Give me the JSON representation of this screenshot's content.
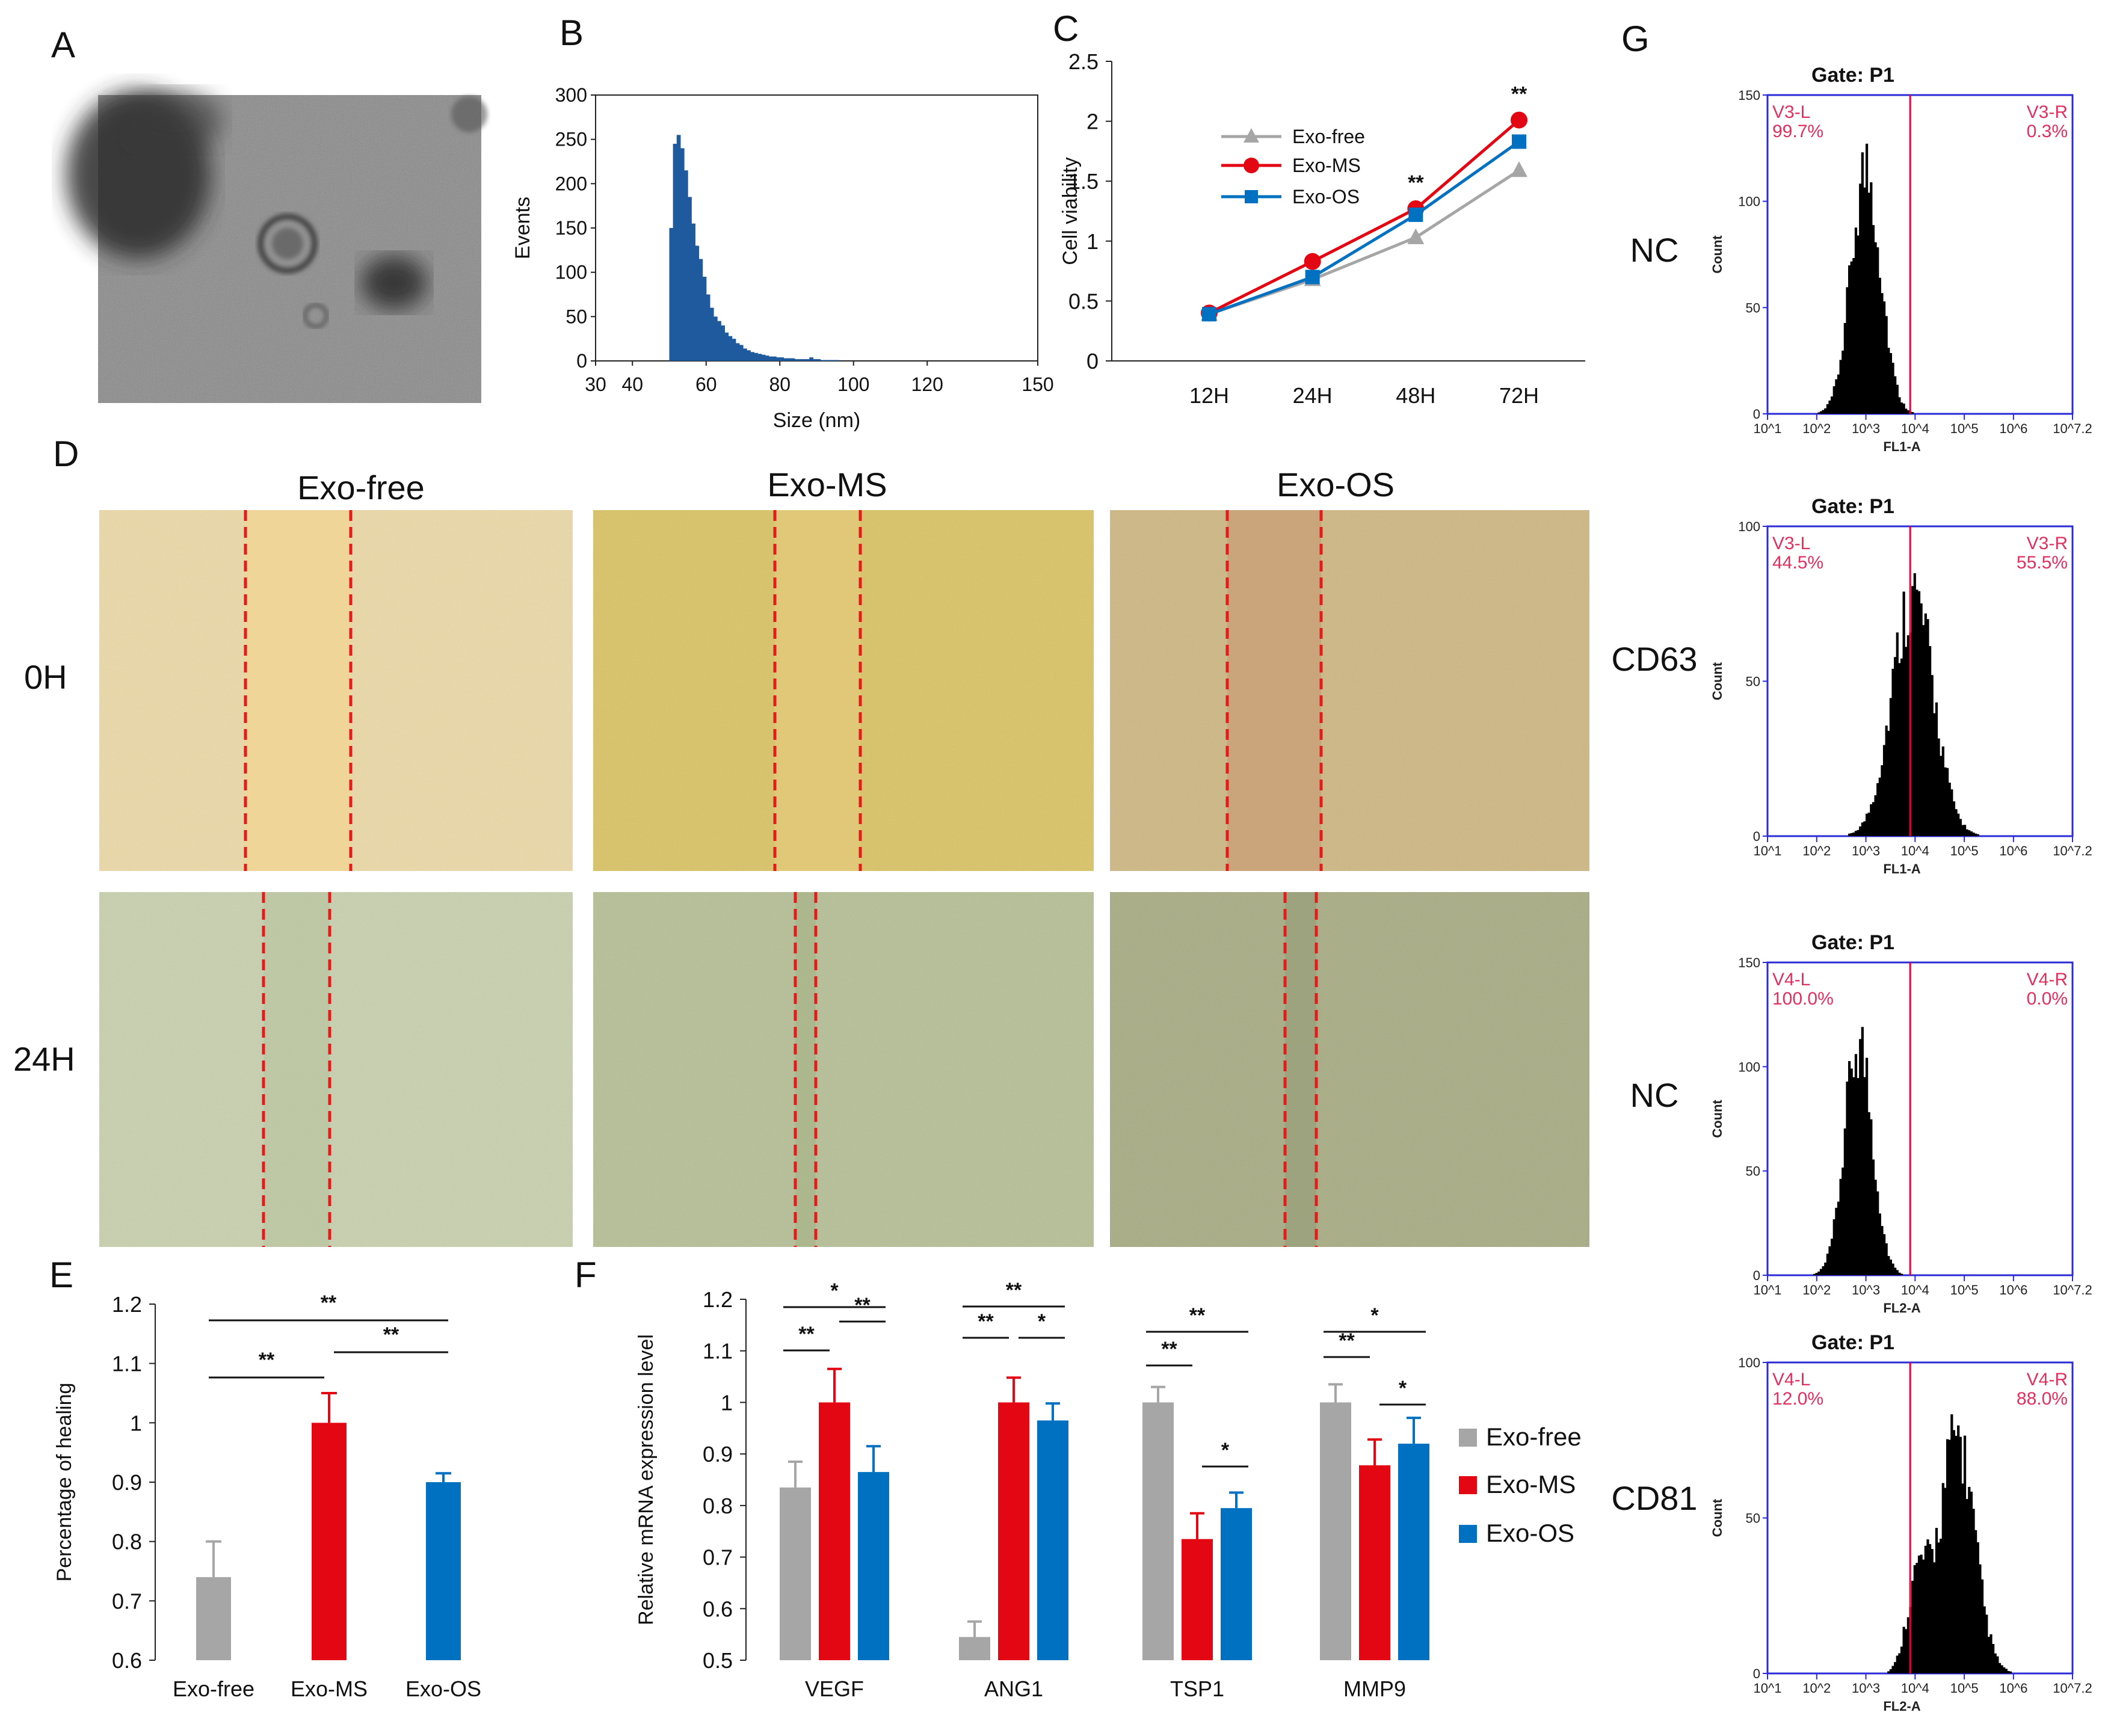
{
  "colors": {
    "exo_free": "#a6a6a6",
    "exo_ms": "#e30613",
    "exo_os": "#0070c0",
    "hist_blue": "#1f5a9e",
    "gate_red": "#e8003c",
    "gate_axis": "#2b2bd8"
  },
  "panels": {
    "A": "A",
    "B": "B",
    "C": "C",
    "D": "D",
    "E": "E",
    "F": "F",
    "G": "G"
  },
  "panel_d": {
    "columns": [
      "Exo-free",
      "Exo-MS",
      "Exo-OS"
    ],
    "rows": [
      "0H",
      "24H"
    ]
  },
  "chart_data": [
    {
      "id": "B",
      "type": "bar",
      "title": "",
      "xlabel": "Size (nm)",
      "ylabel": "Events",
      "xlim": [
        30,
        150
      ],
      "ylim": [
        0,
        300
      ],
      "xticks": [
        "30",
        "40",
        "60",
        "80",
        "100",
        "120",
        "150"
      ],
      "yticks": [
        "0",
        "50",
        "100",
        "150",
        "200",
        "250",
        "300"
      ],
      "x": [
        50,
        51,
        52,
        53,
        54,
        55,
        56,
        57,
        58,
        59,
        60,
        61,
        62,
        63,
        64,
        65,
        66,
        67,
        68,
        69,
        70,
        71,
        72,
        73,
        74,
        75,
        76,
        77,
        78,
        79,
        80,
        81,
        82,
        83,
        84,
        85,
        86,
        87,
        88,
        89,
        90,
        91,
        92,
        93,
        94,
        95
      ],
      "values": [
        150,
        245,
        255,
        240,
        215,
        185,
        155,
        130,
        115,
        95,
        75,
        60,
        50,
        45,
        40,
        32,
        28,
        25,
        20,
        18,
        14,
        12,
        10,
        9,
        8,
        7,
        6,
        5,
        5,
        4,
        4,
        3,
        3,
        3,
        2,
        2,
        2,
        2,
        4,
        2,
        2,
        1,
        1,
        1,
        1,
        1
      ]
    },
    {
      "id": "C",
      "type": "line",
      "ylabel": "Cell viability",
      "categories": [
        "12H",
        "24H",
        "48H",
        "72H"
      ],
      "ylim": [
        0,
        2.5
      ],
      "yticks": [
        "0",
        "0.5",
        "1",
        "1.5",
        "2",
        "2.5"
      ],
      "series": [
        {
          "name": "Exo-free",
          "values": [
            0.39,
            0.68,
            1.03,
            1.59
          ]
        },
        {
          "name": "Exo-MS",
          "values": [
            0.4,
            0.83,
            1.27,
            2.01
          ]
        },
        {
          "name": "Exo-OS",
          "values": [
            0.39,
            0.7,
            1.22,
            1.83
          ]
        }
      ],
      "annotations": [
        {
          "category": "48H",
          "text": "**"
        },
        {
          "category": "72H",
          "text": "**"
        }
      ]
    },
    {
      "id": "E",
      "type": "bar",
      "ylabel": "Percentage of healing",
      "categories": [
        "Exo-free",
        "Exo-MS",
        "Exo-OS"
      ],
      "values": [
        0.74,
        1.0,
        0.9
      ],
      "errors": [
        0.06,
        0.05,
        0.015
      ],
      "ylim": [
        0.6,
        1.2
      ],
      "yticks": [
        "0.6",
        "0.7",
        "0.8",
        "0.9",
        "1",
        "1.1",
        "1.2"
      ],
      "significance": [
        {
          "pair": [
            "Exo-free",
            "Exo-MS"
          ],
          "text": "**"
        },
        {
          "pair": [
            "Exo-MS",
            "Exo-OS"
          ],
          "text": "**"
        },
        {
          "pair": [
            "Exo-free",
            "Exo-OS"
          ],
          "text": "**"
        }
      ]
    },
    {
      "id": "F",
      "type": "bar",
      "ylabel": "Relative mRNA expression level",
      "categories": [
        "VEGF",
        "ANG1",
        "TSP1",
        "MMP9"
      ],
      "ylim": [
        0.5,
        1.2
      ],
      "yticks": [
        "0.5",
        "0.6",
        "0.7",
        "0.8",
        "0.9",
        "1",
        "1.1",
        "1.2"
      ],
      "series": [
        {
          "name": "Exo-free",
          "values": [
            0.835,
            0.545,
            1.0,
            1.0
          ],
          "errors": [
            0.05,
            0.03,
            0.03,
            0.035
          ]
        },
        {
          "name": "Exo-MS",
          "values": [
            1.0,
            1.0,
            0.735,
            0.878
          ],
          "errors": [
            0.065,
            0.048,
            0.05,
            0.05
          ]
        },
        {
          "name": "Exo-OS",
          "values": [
            0.865,
            0.965,
            0.795,
            0.92
          ],
          "errors": [
            0.05,
            0.033,
            0.03,
            0.05
          ]
        }
      ],
      "significance": [
        {
          "category": "VEGF",
          "pair": [
            0,
            1
          ],
          "text": "**"
        },
        {
          "category": "VEGF",
          "pair": [
            1,
            2
          ],
          "text": "**"
        },
        {
          "category": "VEGF",
          "pair": [
            0,
            2
          ],
          "text": "*"
        },
        {
          "category": "ANG1",
          "pair": [
            0,
            1
          ],
          "text": "**"
        },
        {
          "category": "ANG1",
          "pair": [
            1,
            2
          ],
          "text": "*"
        },
        {
          "category": "ANG1",
          "pair": [
            0,
            2
          ],
          "text": "**"
        },
        {
          "category": "TSP1",
          "pair": [
            0,
            1
          ],
          "text": "**"
        },
        {
          "category": "TSP1",
          "pair": [
            1,
            2
          ],
          "text": "*"
        },
        {
          "category": "TSP1",
          "pair": [
            0,
            2
          ],
          "text": "**"
        },
        {
          "category": "MMP9",
          "pair": [
            0,
            1
          ],
          "text": "**"
        },
        {
          "category": "MMP9",
          "pair": [
            1,
            2
          ],
          "text": "*"
        },
        {
          "category": "MMP9",
          "pair": [
            0,
            2
          ],
          "text": "*"
        }
      ]
    },
    {
      "id": "G",
      "type": "histogram",
      "xlabels": [
        "FL1-A",
        "FL1-A",
        "FL2-A",
        "FL2-A"
      ],
      "ylabel": "Count",
      "panels": [
        {
          "label": "NC",
          "gate": "Gate: P1",
          "ymax": 150,
          "yticks": [
            "0",
            "50",
            "100",
            "150"
          ],
          "left": {
            "name": "V3-L",
            "pct": "99.7%"
          },
          "right": {
            "name": "V3-R",
            "pct": "0.3%"
          },
          "peak_log": 3.0,
          "spread": 0.3,
          "height": 118,
          "cut_log": 3.9,
          "xlabel": "FL1-A"
        },
        {
          "label": "CD63",
          "gate": "Gate: P1",
          "ymax": 100,
          "yticks": [
            "0",
            "50",
            "100"
          ],
          "left": {
            "name": "V3-L",
            "pct": "44.5%"
          },
          "right": {
            "name": "V3-R",
            "pct": "55.5%"
          },
          "peak_log": 3.95,
          "spread": 0.42,
          "height": 80,
          "cut_log": 3.9,
          "xlabel": "FL1-A"
        },
        {
          "label": "NC",
          "gate": "Gate: P1",
          "ymax": 150,
          "yticks": [
            "0",
            "50",
            "100",
            "150"
          ],
          "left": {
            "name": "V4-L",
            "pct": "100.0%"
          },
          "right": {
            "name": "V4-R",
            "pct": "0.0%"
          },
          "peak_log": 2.85,
          "spread": 0.28,
          "height": 115,
          "cut_log": 3.9,
          "xlabel": "FL2-A"
        },
        {
          "label": "CD81",
          "gate": "Gate: P1",
          "ymax": 100,
          "yticks": [
            "0",
            "50",
            "100"
          ],
          "left": {
            "name": "V4-L",
            "pct": "12.0%"
          },
          "right": {
            "name": "V4-R",
            "pct": "88.0%"
          },
          "peak_log": 4.85,
          "spread": 0.35,
          "height": 78,
          "cut_log": 3.9,
          "xlabel": "FL2-A"
        }
      ],
      "xticks": [
        "10^1",
        "10^2",
        "10^3",
        "10^4",
        "10^5",
        "10^6",
        "10^7.2"
      ]
    }
  ],
  "legend": {
    "items": [
      "Exo-free",
      "Exo-MS",
      "Exo-OS"
    ]
  }
}
